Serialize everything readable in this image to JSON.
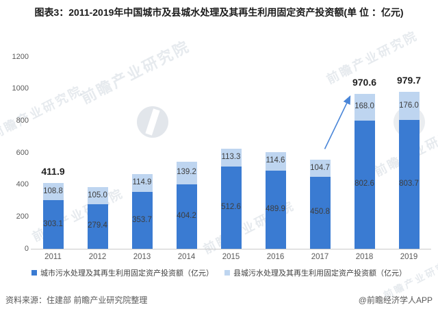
{
  "title": "图表3：2011-2019年中国城市及县城水处理及其再生利用固定资产投资额(单 位 ：亿元)",
  "chart_data": {
    "type": "bar",
    "stacked": true,
    "title": "图表3：2011-2019年中国城市及县城水处理及其再生利用固定资产投资额(单 位 ：亿元)",
    "unit": "亿元",
    "categories": [
      "2011",
      "2012",
      "2013",
      "2014",
      "2015",
      "2016",
      "2017",
      "2018",
      "2019"
    ],
    "series": [
      {
        "name": "城市污水处理及其再生利用固定资产投资额（亿元）",
        "color": "#3a7bd2",
        "values": [
          303.1,
          279.4,
          353.7,
          404.2,
          512.6,
          489.9,
          450.8,
          802.6,
          803.7
        ]
      },
      {
        "name": "县城污水处理及其再生利用固定资产投资额（亿元）",
        "color": "#bed5f0",
        "values": [
          108.8,
          105.0,
          114.9,
          139.2,
          113.3,
          114.6,
          104.7,
          168.0,
          176.0
        ]
      }
    ],
    "total_labels": {
      "0": 411.9,
      "7": 970.6,
      "8": 979.7
    },
    "ylim": [
      0,
      1200
    ],
    "yticks": [
      0,
      200,
      400,
      600,
      800,
      1000,
      1200
    ],
    "grid": false,
    "legend_position": "bottom",
    "annotation_arrow": {
      "from_category": "2017",
      "to_category": "2018"
    }
  },
  "footer": {
    "source": "资料来源：住建部 前瞻产业研究院整理",
    "credit": "@前瞻经济学人APP"
  },
  "watermark": {
    "brand": "前瞻产业研究院"
  }
}
